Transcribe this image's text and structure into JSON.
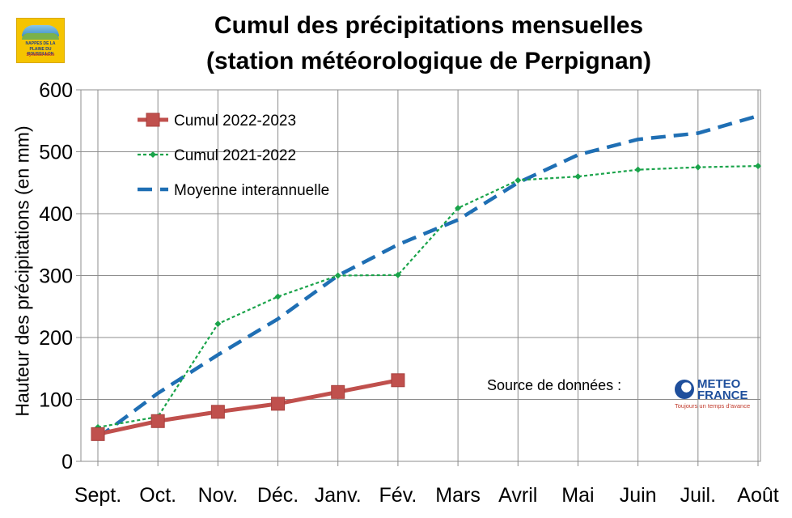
{
  "chart_data": {
    "type": "line",
    "title": "Cumul des précipitations mensuelles",
    "subtitle": "(station météorologique de Perpignan)",
    "xlabel": "",
    "ylabel": "Hauteur des précipitations (en mm)",
    "categories": [
      "Sept.",
      "Oct.",
      "Nov.",
      "Déc.",
      "Janv.",
      "Fév.",
      "Mars",
      "Avril",
      "Mai",
      "Juin",
      "Juil.",
      "Août"
    ],
    "ylim": [
      0,
      600
    ],
    "yticks": [
      0,
      100,
      200,
      300,
      400,
      500,
      600
    ],
    "grid": true,
    "legend_position": "top-left",
    "series": [
      {
        "name": "Cumul 2022-2023",
        "style": "solid-square-markers",
        "color": "#c0504d",
        "values": [
          44,
          65,
          80,
          93,
          112,
          131,
          null,
          null,
          null,
          null,
          null,
          null
        ]
      },
      {
        "name": "Cumul 2021-2022",
        "style": "dotted-diamond-markers",
        "color": "#1aa34a",
        "values": [
          55,
          72,
          222,
          266,
          300,
          301,
          409,
          454,
          460,
          471,
          475,
          477
        ]
      },
      {
        "name": "Moyenne interannuelle",
        "style": "long-dash",
        "color": "#1f6fb4",
        "values": [
          38,
          110,
          172,
          230,
          300,
          350,
          390,
          450,
          495,
          520,
          530,
          558
        ]
      }
    ],
    "annotation": "Source de données :"
  },
  "logos": {
    "nappes": {
      "line1": "NAPPES DE LA",
      "line2": "PLAINE DU ROUSSILLON",
      "line3": "Syndicat Mixte"
    },
    "meteo": {
      "line1": "METEO",
      "line2": "FRANCE",
      "tagline": "Toujours un temps d'avance"
    }
  },
  "colors": {
    "grid": "#8c8c8c",
    "axis": "#8c8c8c"
  }
}
